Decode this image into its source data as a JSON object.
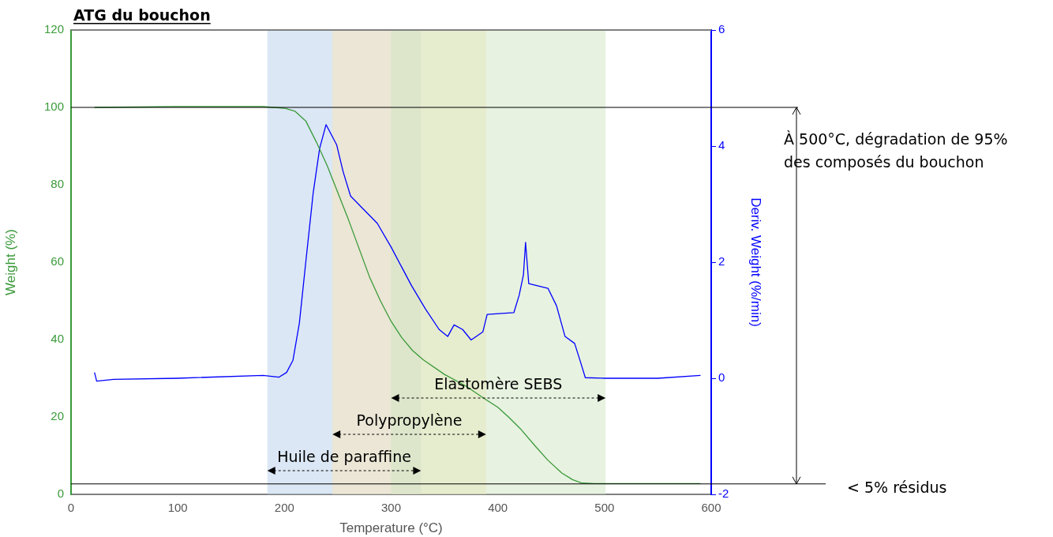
{
  "chart_data": {
    "type": "line",
    "title": "ATG du bouchon",
    "xlabel": "Temperature (°C)",
    "ylabel": "Weight (%)",
    "y2label": "Deriv. Weight (%/min)",
    "xlim": [
      0,
      600
    ],
    "xticks": [
      0,
      100,
      200,
      300,
      400,
      500,
      600
    ],
    "ylim": [
      0,
      120
    ],
    "yticks": [
      0,
      20,
      40,
      60,
      80,
      100,
      120
    ],
    "y2lim": [
      -2,
      6
    ],
    "y2ticks": [
      -2,
      0,
      2,
      4,
      6
    ],
    "series": [
      {
        "color": "#3a9a3a",
        "x": [
          22,
          100,
          180,
          200,
          210,
          220,
          230,
          240,
          250,
          260,
          270,
          280,
          290,
          300,
          310,
          320,
          330,
          350,
          370,
          386,
          400,
          410,
          421,
          435,
          447,
          460,
          470,
          478,
          490,
          590
        ],
        "values": [
          100,
          100.2,
          100.2,
          99.8,
          99,
          96.5,
          91,
          85,
          78,
          71,
          63.5,
          56,
          50,
          44.7,
          40.5,
          37.2,
          34.8,
          31,
          28,
          25,
          22.5,
          20,
          17,
          12.5,
          8.8,
          5.5,
          3.8,
          3,
          2.8,
          2.8
        ]
      },
      {
        "color": "#0000ff",
        "axis": "y2",
        "x": [
          22,
          24,
          40,
          100,
          180,
          195,
          202,
          208,
          214,
          220,
          227,
          233,
          239,
          249,
          255,
          262,
          271,
          287,
          300,
          319,
          332,
          345,
          353,
          359,
          367,
          375,
          386,
          390,
          415,
          420,
          424,
          426,
          429,
          447,
          455,
          463,
          472,
          478,
          482,
          500,
          550,
          590
        ],
        "values": [
          0.1,
          -0.05,
          -0.02,
          0,
          0.05,
          0.02,
          0.1,
          0.31,
          0.95,
          2.0,
          3.2,
          3.96,
          4.37,
          4.02,
          3.56,
          3.14,
          2.97,
          2.67,
          2.26,
          1.6,
          1.2,
          0.84,
          0.72,
          0.92,
          0.84,
          0.66,
          0.8,
          1.1,
          1.13,
          1.43,
          1.78,
          2.34,
          1.63,
          1.55,
          1.25,
          0.72,
          0.6,
          0.25,
          0.01,
          0,
          0,
          0.05
        ]
      }
    ],
    "bands": [
      {
        "axis": "x",
        "from": 184,
        "to": 328,
        "label": "Huile de paraffine",
        "color": "#b8d0ea"
      },
      {
        "axis": "x",
        "from": 245,
        "to": 389,
        "label": "Polypropylène",
        "color": "#fbe6b6"
      },
      {
        "axis": "x",
        "from": 300,
        "to": 501,
        "label": "Elastomère SEBS",
        "color": "#d0e6c2"
      }
    ],
    "ref_lines": [
      {
        "axis": "y",
        "value": 100,
        "color": "#000000"
      },
      {
        "axis": "y",
        "value": 2.7,
        "color": "#000000"
      }
    ],
    "annotations": [
      "À 500°C, dégradation de 95% des composés du bouchon",
      "< 5% résidus"
    ]
  }
}
